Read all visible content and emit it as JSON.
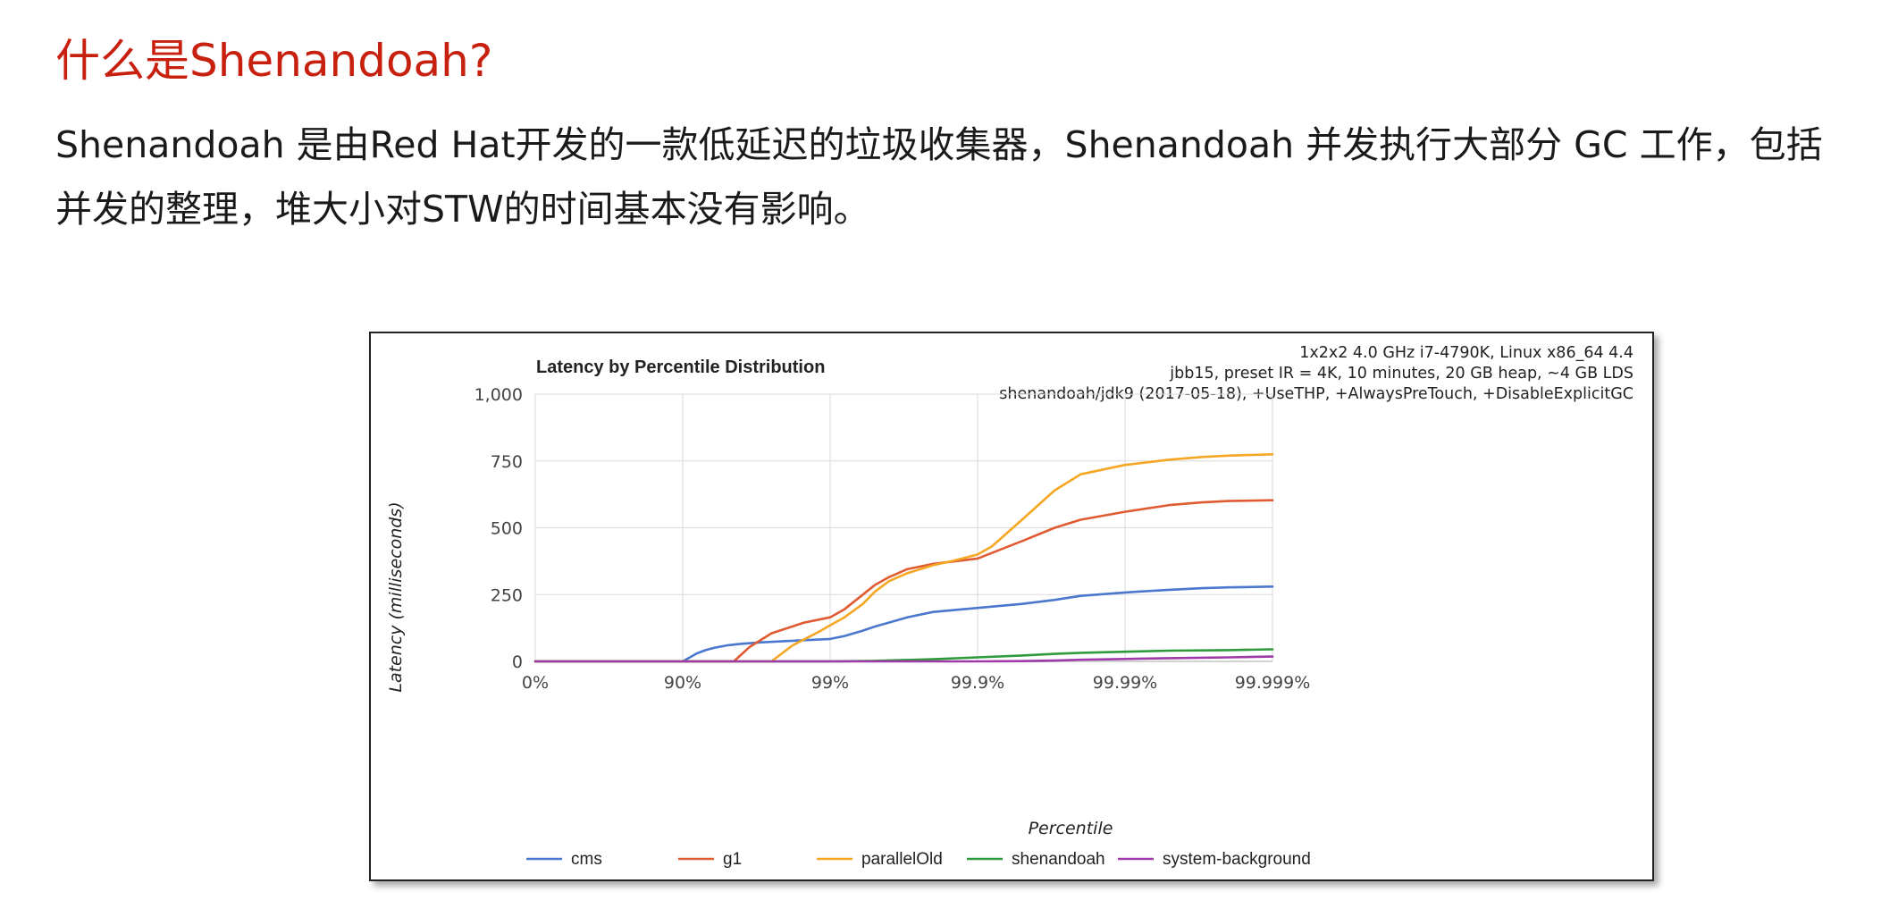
{
  "slide": {
    "title": "什么是Shenandoah?",
    "body": "Shenandoah 是由Red Hat开发的一款低延迟的垃圾收集器，Shenandoah 并发执行大部分 GC 工作，包括并发的整理，堆大小对STW的时间基本没有影响。"
  },
  "chart_data": {
    "type": "line",
    "title": "Latency by Percentile Distribution",
    "info_lines": [
      "1x2x2 4.0 GHz i7-4790K, Linux x86_64 4.4",
      "jbb15, preset IR = 4K, 10 minutes, 20 GB heap, ~4 GB LDS",
      "shenandoah/jdk9 (2017-05-18), +UseTHP, +AlwaysPreTouch, +DisableExplicitGC"
    ],
    "xlabel": "Percentile",
    "ylabel": "Latency (milliseconds)",
    "x_scale": "percentile-log (nines)",
    "x_ticks": [
      "0%",
      "90%",
      "99%",
      "99.9%",
      "99.99%",
      "99.999%"
    ],
    "x_tick_values": [
      0,
      90,
      99,
      99.9,
      99.99,
      99.999
    ],
    "y_ticks": [
      "0",
      "250",
      "500",
      "750",
      "1,000"
    ],
    "y_tick_values": [
      0,
      250,
      500,
      750,
      1000
    ],
    "ylim": [
      0,
      1000
    ],
    "grid": true,
    "legend_position": "bottom",
    "series": [
      {
        "name": "cms",
        "color": "#4a78cf",
        "x": [
          0,
          90,
          92,
          93,
          94,
          95,
          96,
          97,
          98,
          99,
          99.2,
          99.4,
          99.5,
          99.6,
          99.7,
          99.8,
          99.9,
          99.95,
          99.97,
          99.98,
          99.99,
          99.995,
          99.997,
          99.998,
          99.999
        ],
        "y": [
          0,
          0,
          30,
          42,
          52,
          60,
          66,
          71,
          76,
          84,
          95,
          115,
          130,
          145,
          165,
          185,
          200,
          215,
          230,
          245,
          258,
          268,
          274,
          277,
          280
        ]
      },
      {
        "name": "g1",
        "color": "#e05a32",
        "x": [
          0,
          95.5,
          96.5,
          97.5,
          98.5,
          99,
          99.2,
          99.4,
          99.5,
          99.6,
          99.7,
          99.8,
          99.9,
          99.95,
          99.97,
          99.98,
          99.99,
          99.995,
          99.997,
          99.998,
          99.999
        ],
        "y": [
          0,
          0,
          55,
          105,
          145,
          165,
          195,
          250,
          285,
          315,
          345,
          365,
          385,
          450,
          500,
          530,
          560,
          585,
          595,
          600,
          603
        ]
      },
      {
        "name": "parallelOld",
        "color": "#f5a623",
        "x": [
          0,
          97.5,
          98.2,
          98.8,
          99,
          99.2,
          99.4,
          99.5,
          99.6,
          99.7,
          99.8,
          99.85,
          99.9,
          99.92,
          99.95,
          99.97,
          99.98,
          99.99,
          99.995,
          99.997,
          99.998,
          99.999
        ],
        "y": [
          0,
          0,
          60,
          110,
          135,
          165,
          215,
          260,
          300,
          330,
          360,
          375,
          400,
          430,
          530,
          640,
          700,
          735,
          755,
          765,
          770,
          775
        ]
      },
      {
        "name": "shenandoah",
        "color": "#2e9b3a",
        "x": [
          0,
          99,
          99.5,
          99.8,
          99.9,
          99.95,
          99.97,
          99.98,
          99.99,
          99.995,
          99.998,
          99.999
        ],
        "y": [
          0,
          0,
          2,
          8,
          15,
          22,
          28,
          32,
          36,
          40,
          42,
          45
        ]
      },
      {
        "name": "system-background",
        "color": "#a03aa8",
        "x": [
          0,
          99.9,
          99.95,
          99.97,
          99.98,
          99.99,
          99.995,
          99.998,
          99.999
        ],
        "y": [
          0,
          0,
          1,
          3,
          6,
          9,
          12,
          15,
          18
        ]
      }
    ]
  }
}
